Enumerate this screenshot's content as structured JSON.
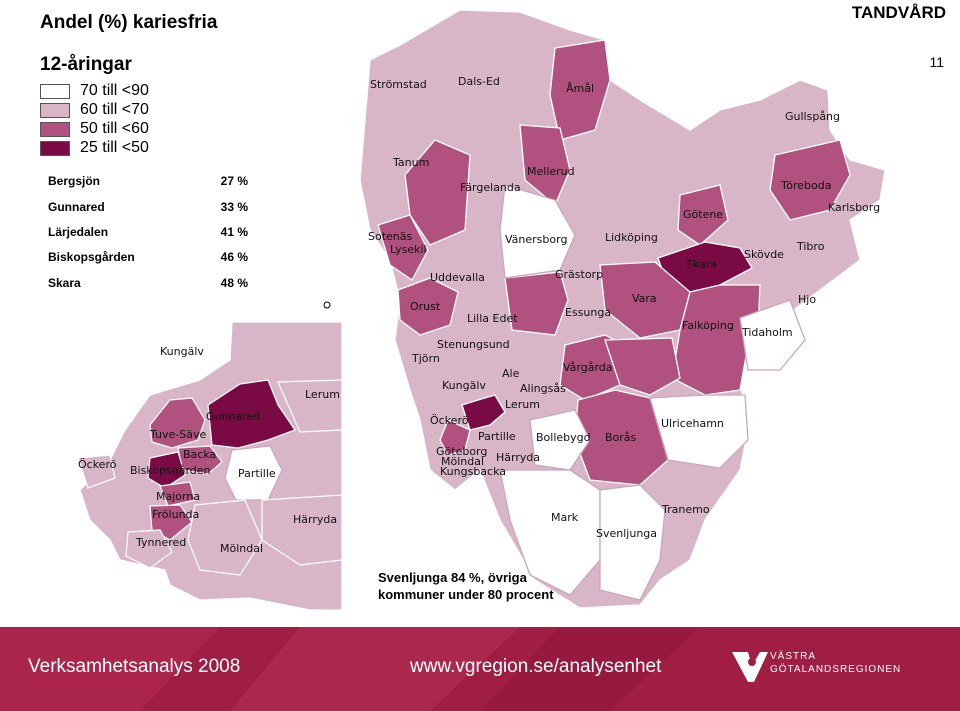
{
  "header": {
    "label": "TANDVÅRD",
    "page_number": "11"
  },
  "title": "Andel (%) kariesfria",
  "subtitle": "12-åringar",
  "legend": [
    {
      "label": "70 till <90",
      "color": "#ffffff"
    },
    {
      "label": "60 till <70",
      "color": "#d8b6c8"
    },
    {
      "label": "50 till <60",
      "color": "#b0517f"
    },
    {
      "label": "25 till <50",
      "color": "#7a0a43"
    }
  ],
  "lowest": [
    {
      "name": "Bergsjön",
      "value": "27 %"
    },
    {
      "name": "Gunnared",
      "value": "33 %"
    },
    {
      "name": "Lärjedalen",
      "value": "41 %"
    },
    {
      "name": "Biskopsgården",
      "value": "46 %"
    },
    {
      "name": "Skara",
      "value": "48 %"
    }
  ],
  "note": "Svenljunga 84 %, övriga\nkommuner under 80 procent",
  "municipalities": [
    "Strömstad",
    "Dals-Ed",
    "Åmål",
    "Gullspång",
    "Tanum",
    "Mellerud",
    "Färgelanda",
    "Töreboda",
    "Karlsborg",
    "Götene",
    "Sotenäs",
    "Lysekil",
    "Vänersborg",
    "Lidköping",
    "Tibro",
    "Skövde",
    "Uddevalla",
    "Grästorp",
    "Skara",
    "Hjo",
    "Orust",
    "Vara",
    "Essunga",
    "Falköping",
    "Tidaholm",
    "Lilla Edet",
    "Stenungsund",
    "Tjörn",
    "Ale",
    "Vårgårda",
    "Kungälv",
    "Lerum",
    "Ulricehamn",
    "Öckerö",
    "Partille",
    "Bollebygd",
    "Borås",
    "Göteborg",
    "Mölndal",
    "Härryda",
    "Kungsbacka",
    "Mark",
    "Tranemo",
    "Svenljunga",
    "Alingsås"
  ],
  "inset_labels": [
    "Kungälv",
    "Lerum",
    "Gunnared",
    "Tuve-Säve",
    "Backa",
    "Öckerö",
    "Biskopsgården",
    "Partille",
    "Majorna",
    "Frölunda",
    "Härryda",
    "Tynnered",
    "Mölndal"
  ],
  "footer": {
    "left": "Verksamhetsanalys 2008",
    "url": "www.vgregion.se/analysenhet",
    "logo_line1": "VÄSTRA",
    "logo_line2": "GÖTALANDSREGIONEN",
    "color": "#a01d44"
  }
}
